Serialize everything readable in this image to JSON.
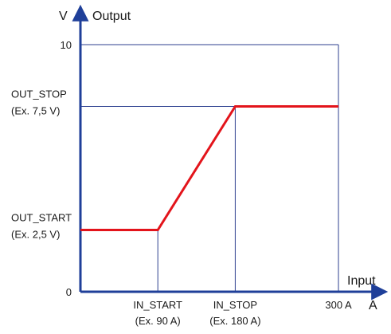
{
  "chart_data": {
    "type": "line",
    "xlabel": "Input",
    "xunit": "A",
    "ylabel": "Output",
    "yunit": "V",
    "xlim": [
      0,
      300
    ],
    "ylim": [
      0,
      10
    ],
    "x_ticks": [
      {
        "value": 90,
        "name": "IN_START",
        "note": "(Ex. 90 A)"
      },
      {
        "value": 180,
        "name": "IN_STOP",
        "note": "(Ex. 180 A)"
      },
      {
        "value": 300,
        "name": "300 A",
        "note": ""
      }
    ],
    "y_ticks": [
      {
        "value": 0,
        "name": "0",
        "note": ""
      },
      {
        "value": 2.5,
        "name": "OUT_START",
        "note": "(Ex. 2,5 V)"
      },
      {
        "value": 7.5,
        "name": "OUT_STOP",
        "note": "(Ex. 7,5 V)"
      },
      {
        "value": 10,
        "name": "10",
        "note": ""
      }
    ],
    "series": [
      {
        "color": "#e3141b",
        "x": [
          0,
          90,
          180,
          300
        ],
        "y": [
          2.5,
          2.5,
          7.5,
          7.5
        ]
      }
    ],
    "axis_color": "#1f3f99",
    "guide_color": "#2c3f8f",
    "grid": false
  }
}
